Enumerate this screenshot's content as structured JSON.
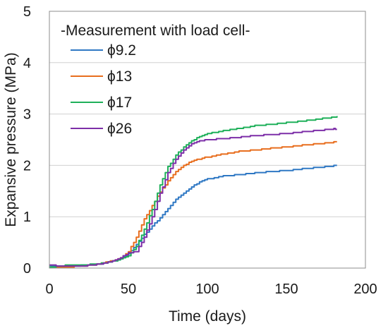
{
  "chart_data": {
    "type": "line",
    "title": "",
    "xlabel": "Time (days)",
    "ylabel": "Expansive pressure (MPa)",
    "xlim": [
      0,
      200
    ],
    "ylim": [
      0,
      5
    ],
    "xticks": [
      0,
      50,
      100,
      150,
      200
    ],
    "yticks": [
      0,
      1,
      2,
      3,
      4,
      5
    ],
    "grid": "horizontal",
    "legend_title": "-Measurement with load cell-",
    "legend_position": "top-left",
    "series": [
      {
        "name": "ϕ9.2",
        "color": "#2f78c4",
        "points": [
          [
            0,
            0.05
          ],
          [
            10,
            0.04
          ],
          [
            20,
            0.05
          ],
          [
            30,
            0.07
          ],
          [
            40,
            0.13
          ],
          [
            45,
            0.18
          ],
          [
            50,
            0.27
          ],
          [
            55,
            0.45
          ],
          [
            60,
            0.65
          ],
          [
            65,
            0.82
          ],
          [
            70,
            0.98
          ],
          [
            75,
            1.16
          ],
          [
            80,
            1.33
          ],
          [
            85,
            1.46
          ],
          [
            90,
            1.58
          ],
          [
            95,
            1.67
          ],
          [
            100,
            1.73
          ],
          [
            110,
            1.79
          ],
          [
            120,
            1.82
          ],
          [
            130,
            1.85
          ],
          [
            140,
            1.88
          ],
          [
            150,
            1.9
          ],
          [
            160,
            1.93
          ],
          [
            170,
            1.96
          ],
          [
            180,
            1.99
          ],
          [
            182,
            2.0
          ]
        ]
      },
      {
        "name": "ϕ13",
        "color": "#e86e1e",
        "points": [
          [
            0,
            0.01
          ],
          [
            10,
            0.02
          ],
          [
            20,
            0.04
          ],
          [
            30,
            0.07
          ],
          [
            40,
            0.14
          ],
          [
            45,
            0.2
          ],
          [
            50,
            0.32
          ],
          [
            55,
            0.6
          ],
          [
            60,
            0.95
          ],
          [
            65,
            1.22
          ],
          [
            70,
            1.48
          ],
          [
            75,
            1.7
          ],
          [
            80,
            1.87
          ],
          [
            85,
            2.0
          ],
          [
            90,
            2.08
          ],
          [
            95,
            2.13
          ],
          [
            100,
            2.16
          ],
          [
            110,
            2.22
          ],
          [
            120,
            2.27
          ],
          [
            130,
            2.3
          ],
          [
            140,
            2.33
          ],
          [
            150,
            2.36
          ],
          [
            160,
            2.39
          ],
          [
            170,
            2.42
          ],
          [
            180,
            2.45
          ],
          [
            182,
            2.46
          ]
        ]
      },
      {
        "name": "ϕ17",
        "color": "#1fb05a",
        "points": [
          [
            0,
            0.02
          ],
          [
            10,
            0.05
          ],
          [
            20,
            0.06
          ],
          [
            30,
            0.08
          ],
          [
            40,
            0.13
          ],
          [
            45,
            0.17
          ],
          [
            50,
            0.24
          ],
          [
            55,
            0.42
          ],
          [
            60,
            0.75
          ],
          [
            65,
            1.15
          ],
          [
            70,
            1.62
          ],
          [
            75,
            1.97
          ],
          [
            80,
            2.2
          ],
          [
            85,
            2.36
          ],
          [
            90,
            2.48
          ],
          [
            95,
            2.56
          ],
          [
            100,
            2.62
          ],
          [
            110,
            2.67
          ],
          [
            120,
            2.72
          ],
          [
            130,
            2.77
          ],
          [
            140,
            2.8
          ],
          [
            150,
            2.83
          ],
          [
            160,
            2.86
          ],
          [
            170,
            2.9
          ],
          [
            180,
            2.94
          ],
          [
            182,
            2.95
          ]
        ]
      },
      {
        "name": "ϕ26",
        "color": "#7d2fa8",
        "points": [
          [
            0,
            0.06
          ],
          [
            10,
            0.03
          ],
          [
            20,
            0.04
          ],
          [
            30,
            0.07
          ],
          [
            40,
            0.13
          ],
          [
            45,
            0.2
          ],
          [
            50,
            0.3
          ],
          [
            55,
            0.32
          ],
          [
            60,
            0.6
          ],
          [
            65,
            1.0
          ],
          [
            70,
            1.45
          ],
          [
            75,
            1.85
          ],
          [
            80,
            2.12
          ],
          [
            85,
            2.3
          ],
          [
            90,
            2.42
          ],
          [
            95,
            2.48
          ],
          [
            100,
            2.5
          ],
          [
            110,
            2.52
          ],
          [
            120,
            2.55
          ],
          [
            130,
            2.58
          ],
          [
            140,
            2.6
          ],
          [
            150,
            2.62
          ],
          [
            160,
            2.65
          ],
          [
            170,
            2.68
          ],
          [
            180,
            2.71
          ],
          [
            182,
            2.7
          ]
        ]
      }
    ]
  }
}
